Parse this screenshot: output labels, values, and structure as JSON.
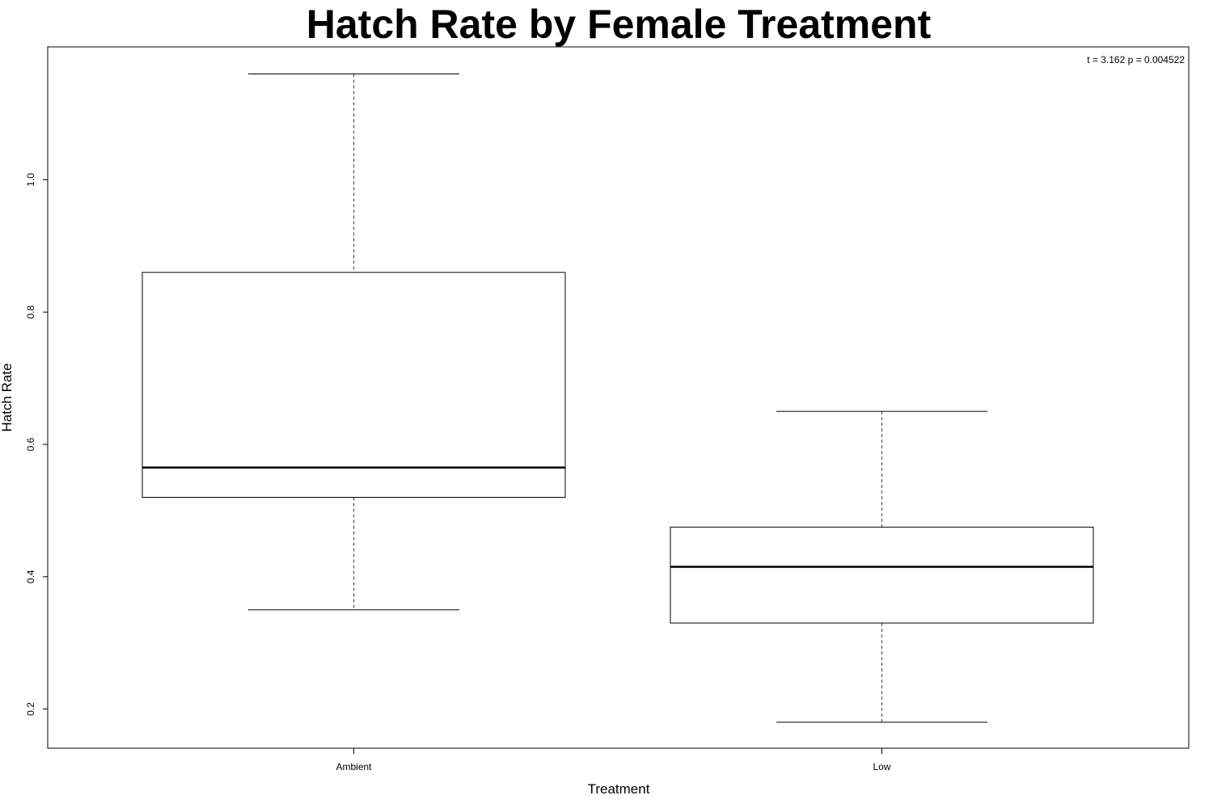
{
  "chart_data": {
    "type": "box",
    "title": "Hatch Rate by Female Treatment",
    "xlabel": "Treatment",
    "ylabel": "Hatch Rate",
    "annotation": "t = 3.162 p = 0.004522",
    "categories": [
      "Ambient",
      "Low"
    ],
    "boxes": [
      {
        "category": "Ambient",
        "whisker_low": 0.35,
        "q1": 0.52,
        "median": 0.565,
        "q3": 0.86,
        "whisker_high": 1.16
      },
      {
        "category": "Low",
        "whisker_low": 0.18,
        "q1": 0.33,
        "median": 0.415,
        "q3": 0.475,
        "whisker_high": 0.65
      }
    ],
    "yticks": [
      "0.2",
      "0.4",
      "0.6",
      "0.8",
      "1.0"
    ],
    "ylim": [
      0.14,
      1.2
    ],
    "grid": false,
    "legend": "none"
  }
}
